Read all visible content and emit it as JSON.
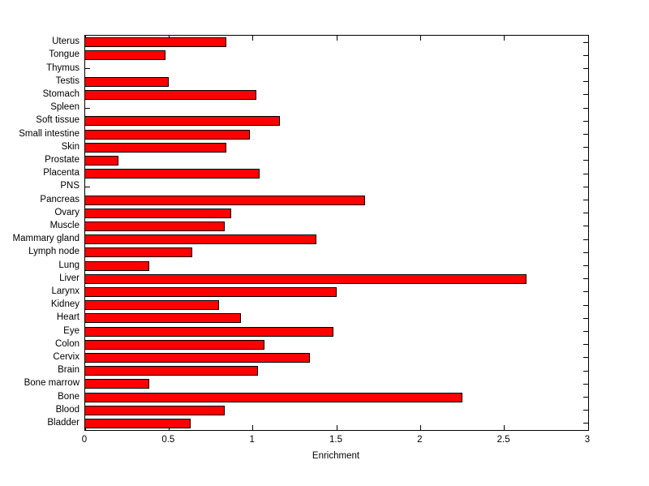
{
  "chart_data": {
    "type": "bar",
    "orientation": "horizontal",
    "title": "",
    "xlabel": "Enrichment",
    "ylabel": "",
    "xlim": [
      0,
      3
    ],
    "grid": false,
    "legend": null,
    "bar_color": "#ff0000",
    "bar_edge_color": "#000000",
    "axis_color": "#000000",
    "background_color": "#ffffff",
    "xticks": [
      {
        "value": 0,
        "label": "0"
      },
      {
        "value": 0.5,
        "label": "0.5"
      },
      {
        "value": 1,
        "label": "1"
      },
      {
        "value": 1.5,
        "label": "1.5"
      },
      {
        "value": 2,
        "label": "2"
      },
      {
        "value": 2.5,
        "label": "2.5"
      },
      {
        "value": 3,
        "label": "3"
      }
    ],
    "categories": [
      "Uterus",
      "Tongue",
      "Thymus",
      "Testis",
      "Stomach",
      "Spleen",
      "Soft tissue",
      "Small intestine",
      "Skin",
      "Prostate",
      "Placenta",
      "PNS",
      "Pancreas",
      "Ovary",
      "Muscle",
      "Mammary gland",
      "Lymph node",
      "Lung",
      "Liver",
      "Larynx",
      "Kidney",
      "Heart",
      "Eye",
      "Colon",
      "Cervix",
      "Brain",
      "Bone marrow",
      "Bone",
      "Blood",
      "Bladder"
    ],
    "values": [
      0.84,
      0.48,
      0,
      0.5,
      1.02,
      0,
      1.16,
      0.98,
      0.84,
      0.2,
      1.04,
      0,
      1.67,
      0.87,
      0.83,
      1.38,
      0.64,
      0.38,
      2.63,
      1.5,
      0.8,
      0.93,
      1.48,
      1.07,
      1.34,
      1.03,
      0.38,
      2.25,
      0.83,
      0.63
    ]
  }
}
